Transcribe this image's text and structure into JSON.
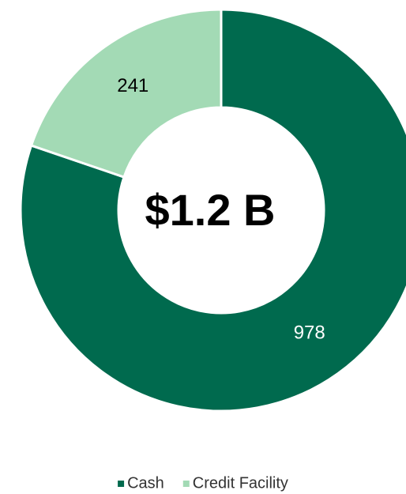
{
  "chart_data": {
    "type": "donut",
    "center_label": "$1.2 B",
    "categories": [
      "Cash",
      "Credit Facility"
    ],
    "values": [
      978,
      241
    ],
    "colors": [
      "#006a4e",
      "#a3dab5"
    ],
    "legend": "bottom"
  }
}
